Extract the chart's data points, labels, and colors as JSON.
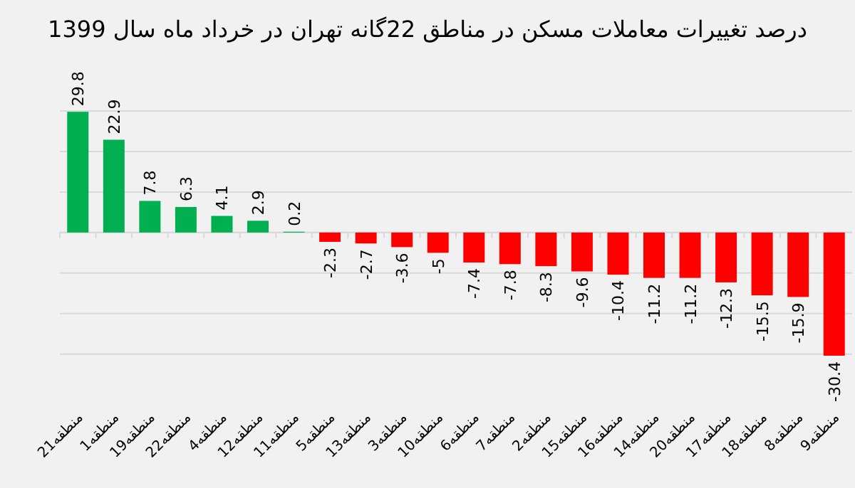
{
  "chart_data": {
    "type": "bar",
    "title": "درصد تغییرات معاملات مسکن در مناطق 22گانه تهران در خرداد ماه سال 1399",
    "categories": [
      "منطقه21",
      "منطقه1",
      "منطقه19",
      "منطقه22",
      "منطقه4",
      "منطقه12",
      "منطقه11",
      "منطقه5",
      "منطقه13",
      "منطقه3",
      "منطقه10",
      "منطقه6",
      "منطقه7",
      "منطقه2",
      "منطقه15",
      "منطقه16",
      "منطقه14",
      "منطقه20",
      "منطقه17",
      "منطقه18",
      "منطقه8",
      "منطقه9"
    ],
    "values": [
      29.8,
      22.9,
      7.8,
      6.3,
      4.1,
      2.9,
      0.2,
      -2.3,
      -2.7,
      -3.6,
      -5,
      -7.4,
      -7.8,
      -8.3,
      -9.6,
      -10.4,
      -11.2,
      -11.2,
      -12.3,
      -15.5,
      -15.9,
      -30.4
    ],
    "colors": [
      "#00b050",
      "#00b050",
      "#00b050",
      "#00b050",
      "#00b050",
      "#00b050",
      "#00b050",
      "#ff0000",
      "#ff0000",
      "#ff0000",
      "#ff0000",
      "#ff0000",
      "#ff0000",
      "#ff0000",
      "#ff0000",
      "#ff0000",
      "#ff0000",
      "#ff0000",
      "#ff0000",
      "#ff0000",
      "#ff0000",
      "#ff0000"
    ],
    "yticks": [
      {
        "value": -30,
        "label": null
      },
      {
        "value": -20,
        "label": null
      },
      {
        "value": -10,
        "label": null
      },
      {
        "value": 0,
        "label": null
      },
      {
        "value": 10,
        "label": null
      },
      {
        "value": 20,
        "label": null
      },
      {
        "value": 30,
        "label": null
      }
    ],
    "grid": "y",
    "data_labels": true
  }
}
